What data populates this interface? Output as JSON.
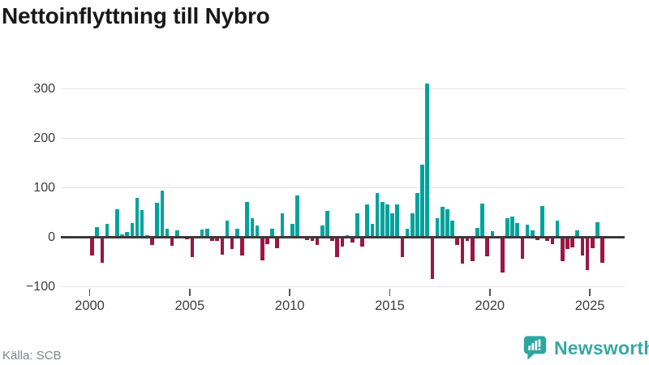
{
  "title": "Nettoinflyttning till Nybro",
  "source": "Källa: SCB",
  "branding": {
    "logo_text": "Newsworthy",
    "logo_color": "#38a7a2"
  },
  "chart_data": {
    "type": "bar",
    "title": "Nettoinflyttning till Nybro",
    "frequency": "quarterly",
    "x_start": "2000-Q1",
    "x_end": "2025-Q3",
    "start_year": 2000,
    "start_quarter": 1,
    "values": [
      -37,
      21,
      -52,
      27,
      0,
      57,
      5,
      11,
      28,
      80,
      55,
      4,
      -16,
      70,
      95,
      18,
      -18,
      14,
      0,
      -4,
      -40,
      0,
      15,
      18,
      -7,
      -8,
      -36,
      34,
      -23,
      18,
      -37,
      71,
      38,
      23,
      -46,
      -14,
      18,
      -22,
      49,
      0,
      27,
      85,
      0,
      -5,
      -8,
      -15,
      23,
      53,
      -8,
      -40,
      -19,
      4,
      -10,
      49,
      -19,
      66,
      27,
      89,
      71,
      67,
      48,
      67,
      -40,
      18,
      48,
      90,
      146,
      310,
      -85,
      39,
      61,
      57,
      34,
      -15,
      -54,
      -8,
      -48,
      19,
      68,
      -38,
      13,
      0,
      -72,
      38,
      41,
      28,
      -44,
      25,
      14,
      -5,
      63,
      -8,
      -14,
      33,
      -48,
      -23,
      -21,
      14,
      -37,
      -67,
      -22,
      31,
      -52
    ],
    "yticks": [
      300,
      200,
      100,
      0,
      -100
    ],
    "ytick_labels": [
      "300",
      "200",
      "100",
      "0",
      "−100"
    ],
    "xtick_years": [
      2000,
      2005,
      2010,
      2015,
      2020,
      2025
    ],
    "xtick_labels": [
      "2000",
      "2005",
      "2010",
      "2015",
      "2020",
      "2025"
    ],
    "ylim": [
      -100,
      310
    ],
    "grid": "horizontal",
    "legend": "none",
    "positive_color": "#00a39c",
    "negative_color": "#9d1543"
  }
}
